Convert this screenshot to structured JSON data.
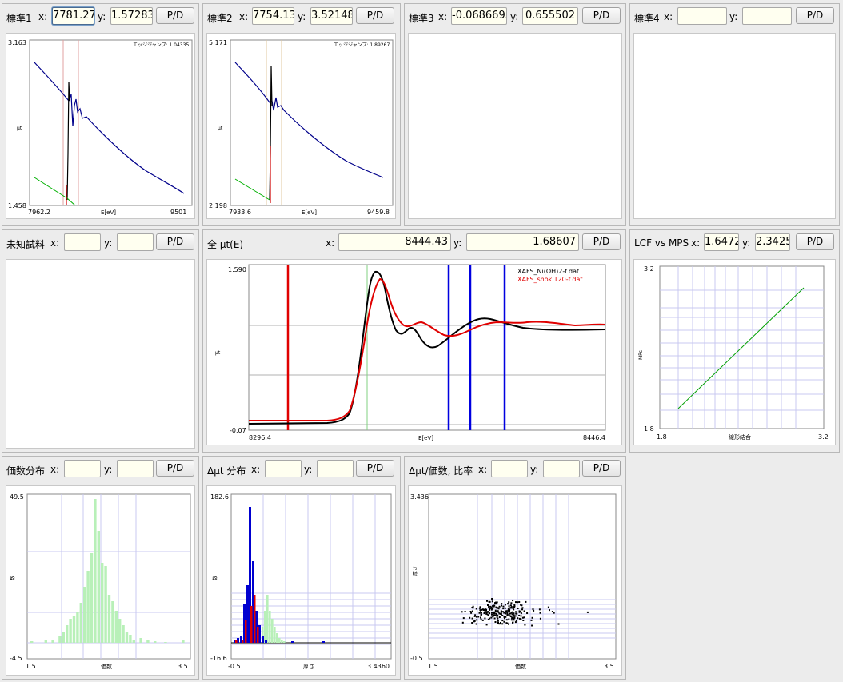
{
  "panels": {
    "std1": {
      "title": "標準1",
      "x_label": "x:",
      "x": "7781.27",
      "y_label": "y:",
      "y": "1.57283",
      "pd": "P/D",
      "plot": {
        "ymax": "3.163",
        "ymin": "1.458",
        "xmin": "7962.2",
        "xmax": "9501",
        "xlabel": "E[eV]",
        "ylabel": "μt",
        "note": "エッジジャンプ: 1.04335"
      }
    },
    "std2": {
      "title": "標準2",
      "x_label": "x:",
      "x": "7754.13",
      "y_label": "y:",
      "y": "3.52148",
      "pd": "P/D",
      "plot": {
        "ymax": "5.171",
        "ymin": "2.198",
        "xmin": "7933.6",
        "xmax": "9459.8",
        "xlabel": "E[eV]",
        "ylabel": "μt",
        "note": "エッジジャンプ: 1.89267"
      }
    },
    "std3": {
      "title": "標準3",
      "x_label": "x:",
      "x": "-0.0686695",
      "y_label": "y:",
      "y": "0.655502",
      "pd": "P/D"
    },
    "std4": {
      "title": "標準4",
      "x_label": "x:",
      "x": "",
      "y_label": "y:",
      "y": "",
      "pd": "P/D"
    },
    "unknown": {
      "title": "未知試料",
      "x_label": "x:",
      "x": "",
      "y_label": "y:",
      "y": "",
      "pd": "P/D"
    },
    "total": {
      "title": "全 μt(E)",
      "x_label": "x:",
      "x": "8444.43",
      "y_label": "y:",
      "y": "1.68607",
      "pd": "P/D",
      "plot": {
        "ymax": "1.590",
        "ymin": "-0.07",
        "xmin": "8296.4",
        "xmax": "8446.4",
        "xlabel": "E[eV]",
        "ylabel": "μt",
        "legend": [
          {
            "name": "XAFS_Ni(OH)2-f.dat",
            "color": "#000000"
          },
          {
            "name": "XAFS_shoki120-f.dat",
            "color": "#e00000"
          }
        ]
      }
    },
    "lcf": {
      "title": "LCF vs MPS",
      "x_label": "x:",
      "x": "1.6472",
      "y_label": "y:",
      "y": "2.3425",
      "pd": "P/D",
      "plot": {
        "ymax": "3.2",
        "ymin": "1.8",
        "xmin": "1.8",
        "xmax": "3.2",
        "xlabel": "線形結合",
        "ylabel": "MPs"
      }
    },
    "valence": {
      "title": "価数分布",
      "x_label": "x:",
      "x": "",
      "y_label": "y:",
      "y": "",
      "pd": "P/D",
      "plot": {
        "ymax": "49.5",
        "ymin": "-4.5",
        "xmin": "1.5",
        "xmax": "3.5",
        "xlabel": "価数",
        "ylabel": "数"
      }
    },
    "dmu": {
      "title": "Δμt 分布",
      "x_label": "x:",
      "x": "",
      "y_label": "y:",
      "y": "",
      "pd": "P/D",
      "plot": {
        "ymax": "182.6",
        "ymin": "-16.6",
        "xmin": "-0.5",
        "xmax": "3.4360",
        "xlabel": "厚さ",
        "ylabel": "数"
      }
    },
    "ratio": {
      "title": "Δμt/価数, 比率",
      "x_label": "x:",
      "x": "",
      "y_label": "y:",
      "y": "",
      "pd": "P/D",
      "plot": {
        "ymax": "3.436",
        "ymin": "-0.5",
        "xmin": "1.5",
        "xmax": "3.5",
        "xlabel": "価数",
        "ylabel": "厚さ"
      }
    }
  },
  "colors": {
    "field_bg": "#fffff0",
    "spectrum_blue": "#00008b",
    "spectrum_green": "#00b000",
    "marker_blue": "#0000e0",
    "marker_red": "#e00000",
    "hist_green": "#b8f0b8"
  }
}
